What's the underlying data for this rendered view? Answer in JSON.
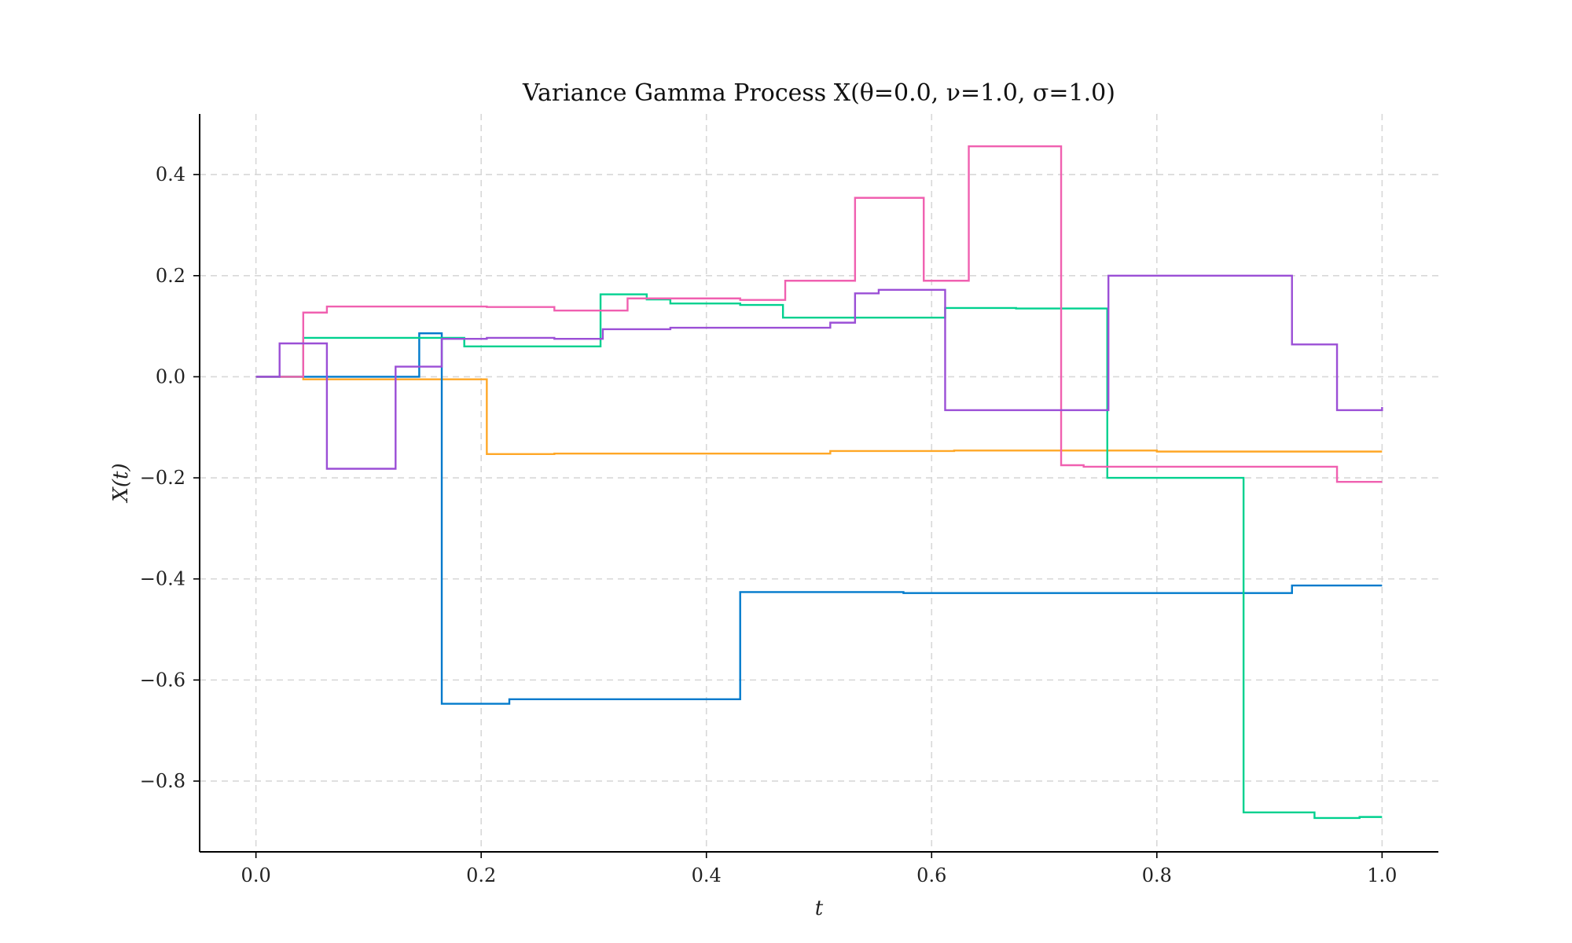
{
  "chart_data": {
    "type": "line",
    "title": "Variance Gamma Process X(θ=0.0, ν=1.0, σ=1.0)",
    "xlabel": "t",
    "ylabel": "X(t)",
    "xlim": [
      -0.05,
      1.05
    ],
    "ylim": [
      -0.94,
      0.52
    ],
    "xticks": [
      0.0,
      0.2,
      0.4,
      0.6,
      0.8,
      1.0
    ],
    "xtick_labels": [
      "0.0",
      "0.2",
      "0.4",
      "0.6",
      "0.8",
      "1.0"
    ],
    "yticks": [
      0.4,
      0.2,
      0.0,
      -0.2,
      -0.4,
      -0.6,
      -0.8
    ],
    "ytick_labels": [
      "0.4",
      "0.2",
      "0.0",
      "−0.2",
      "−0.4",
      "−0.6",
      "−0.8"
    ],
    "grid": true,
    "step": "post",
    "series": [
      {
        "color": "#ffa726",
        "x": [
          0.0,
          0.042,
          0.205,
          0.265,
          0.51,
          0.62,
          0.8,
          1.0
        ],
        "y": [
          0.0,
          -0.005,
          -0.153,
          -0.152,
          -0.147,
          -0.146,
          -0.148,
          -0.148
        ]
      },
      {
        "color": "#007acc",
        "x": [
          0.0,
          0.145,
          0.165,
          0.225,
          0.43,
          0.575,
          0.92,
          1.0
        ],
        "y": [
          0.0,
          0.086,
          -0.647,
          -0.638,
          -0.426,
          -0.428,
          -0.413,
          -0.413
        ]
      },
      {
        "color": "#00d18f",
        "x": [
          0.0,
          0.042,
          0.185,
          0.306,
          0.347,
          0.368,
          0.43,
          0.468,
          0.612,
          0.675,
          0.756,
          0.877,
          0.94,
          0.98,
          1.0
        ],
        "y": [
          0.0,
          0.077,
          0.06,
          0.163,
          0.153,
          0.145,
          0.142,
          0.117,
          0.136,
          0.135,
          -0.2,
          -0.862,
          -0.873,
          -0.871,
          -0.871
        ]
      },
      {
        "color": "#f060b0",
        "x": [
          0.0,
          0.042,
          0.063,
          0.205,
          0.265,
          0.33,
          0.43,
          0.47,
          0.532,
          0.593,
          0.633,
          0.715,
          0.735,
          0.96,
          1.0
        ],
        "y": [
          0.0,
          0.127,
          0.139,
          0.138,
          0.131,
          0.155,
          0.152,
          0.19,
          0.354,
          0.19,
          0.456,
          -0.175,
          -0.178,
          -0.208,
          -0.208
        ]
      },
      {
        "color": "#9b4fd6",
        "x": [
          0.0,
          0.021,
          0.063,
          0.124,
          0.165,
          0.205,
          0.265,
          0.308,
          0.368,
          0.51,
          0.532,
          0.553,
          0.612,
          0.757,
          0.92,
          0.96,
          1.0
        ],
        "y": [
          0.0,
          0.066,
          -0.182,
          0.02,
          0.075,
          0.077,
          0.075,
          0.094,
          0.097,
          0.107,
          0.165,
          0.172,
          -0.066,
          0.2,
          0.064,
          -0.066,
          -0.06
        ]
      }
    ]
  }
}
